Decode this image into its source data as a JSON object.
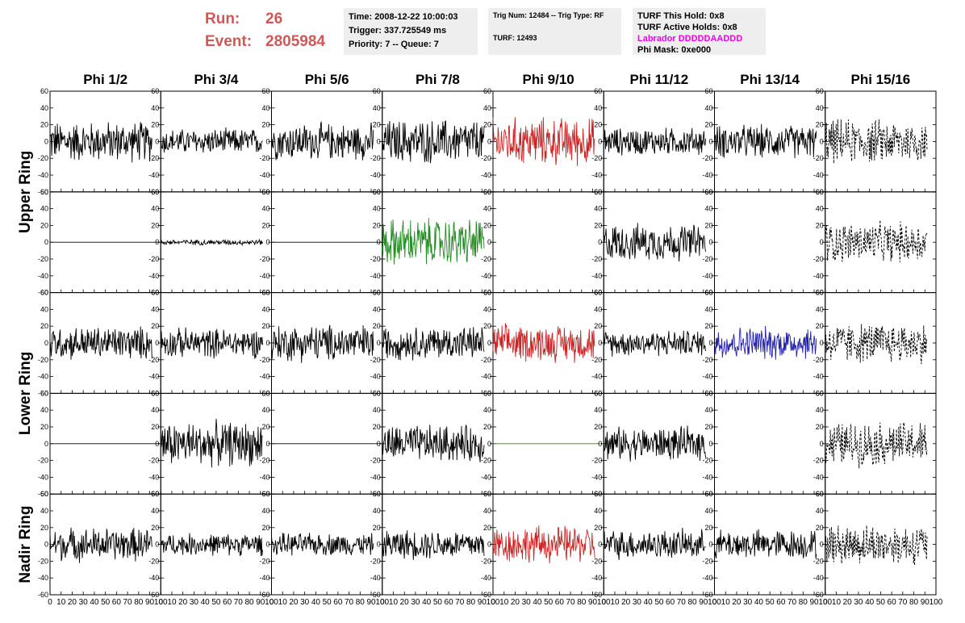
{
  "header": {
    "run_label": "Run:",
    "run_value": "26",
    "event_label": "Event:",
    "event_value": "2805984"
  },
  "info_time": {
    "time": "Time: 2008-12-22 10:00:03",
    "trigger": "Trigger: 337.725549 ms",
    "priority": "Priority: 7 -- Queue: 7"
  },
  "info_trig": {
    "trig": "Trig Num: 12484 -- Trig Type: RF",
    "turf": "TURF: 12493"
  },
  "info_turf": {
    "this_hold": "TURF This Hold: 0x8",
    "active_holds": "TURF Active Holds: 0x8",
    "labrador": "Labrador DDDDDAADDD",
    "phi_mask": "Phi Mask: 0xe000"
  },
  "colors": {
    "header_red": "#d05858",
    "info_bg": "#eeeeee",
    "labrador": "#ee00ee",
    "trace_black": "#000000",
    "trace_red": "#cc2222",
    "trace_green": "#228b22",
    "trace_blue": "#2222aa"
  },
  "chart_data": {
    "type": "line",
    "columns": [
      "Phi 1/2",
      "Phi 3/4",
      "Phi 5/6",
      "Phi 7/8",
      "Phi 9/10",
      "Phi 11/12",
      "Phi 13/14",
      "Phi 15/16"
    ],
    "rows": [
      "Upper Ring",
      "Upper Ring",
      "Lower Ring",
      "Lower Ring",
      "Nadir Ring"
    ],
    "row_labels": [
      "Upper Ring",
      "Lower Ring",
      "Nadir Ring"
    ],
    "xlim": [
      0,
      100
    ],
    "ylim": [
      -60,
      60
    ],
    "x_tick_labels": [
      "0",
      "10",
      "20",
      "30",
      "40",
      "50",
      "60",
      "70",
      "80",
      "90",
      "100"
    ],
    "y_tick_labels": [
      "60",
      "40",
      "20",
      "0",
      "-20",
      "-40",
      "-60"
    ],
    "cells": [
      [
        {
          "color": "black",
          "amp": 22,
          "style": "solid"
        },
        {
          "color": "black",
          "amp": 14,
          "style": "solid"
        },
        {
          "color": "black",
          "amp": 20,
          "style": "solid"
        },
        {
          "color": "black",
          "amp": 24,
          "style": "solid"
        },
        {
          "color": "red",
          "amp": 26,
          "style": "solid"
        },
        {
          "color": "black",
          "amp": 15,
          "style": "solid"
        },
        {
          "color": "black",
          "amp": 18,
          "style": "solid"
        },
        {
          "color": "black",
          "amp": 24,
          "style": "dashed"
        }
      ],
      [
        {
          "color": "black",
          "amp": 0,
          "style": "solid"
        },
        {
          "color": "black",
          "amp": 3,
          "style": "solid"
        },
        {
          "color": "black",
          "amp": 0,
          "style": "solid"
        },
        {
          "color": "green",
          "amp": 26,
          "style": "solid"
        },
        {
          "color": "none",
          "amp": 0,
          "style": "solid"
        },
        {
          "color": "black",
          "amp": 20,
          "style": "solid"
        },
        {
          "color": "none",
          "amp": 0,
          "style": "solid"
        },
        {
          "color": "black",
          "amp": 22,
          "style": "dashed"
        }
      ],
      [
        {
          "color": "black",
          "amp": 18,
          "style": "solid"
        },
        {
          "color": "black",
          "amp": 16,
          "style": "solid"
        },
        {
          "color": "black",
          "amp": 20,
          "style": "solid"
        },
        {
          "color": "black",
          "amp": 18,
          "style": "solid"
        },
        {
          "color": "red",
          "amp": 20,
          "style": "solid"
        },
        {
          "color": "black",
          "amp": 14,
          "style": "solid"
        },
        {
          "color": "blue",
          "amp": 18,
          "style": "solid"
        },
        {
          "color": "black",
          "amp": 22,
          "style": "dashed"
        }
      ],
      [
        {
          "color": "black",
          "amp": 0,
          "style": "solid"
        },
        {
          "color": "black",
          "amp": 24,
          "style": "solid"
        },
        {
          "color": "black",
          "amp": 0,
          "style": "solid"
        },
        {
          "color": "black",
          "amp": 20,
          "style": "solid"
        },
        {
          "color": "green",
          "amp": 0,
          "style": "solid"
        },
        {
          "color": "black",
          "amp": 18,
          "style": "solid"
        },
        {
          "color": "none",
          "amp": 0,
          "style": "solid"
        },
        {
          "color": "black",
          "amp": 24,
          "style": "dashed"
        }
      ],
      [
        {
          "color": "black",
          "amp": 18,
          "style": "solid"
        },
        {
          "color": "black",
          "amp": 12,
          "style": "solid"
        },
        {
          "color": "black",
          "amp": 12,
          "style": "solid"
        },
        {
          "color": "black",
          "amp": 16,
          "style": "solid"
        },
        {
          "color": "red",
          "amp": 20,
          "style": "solid"
        },
        {
          "color": "black",
          "amp": 16,
          "style": "solid"
        },
        {
          "color": "black",
          "amp": 16,
          "style": "solid"
        },
        {
          "color": "black",
          "amp": 22,
          "style": "dashed"
        }
      ]
    ]
  }
}
